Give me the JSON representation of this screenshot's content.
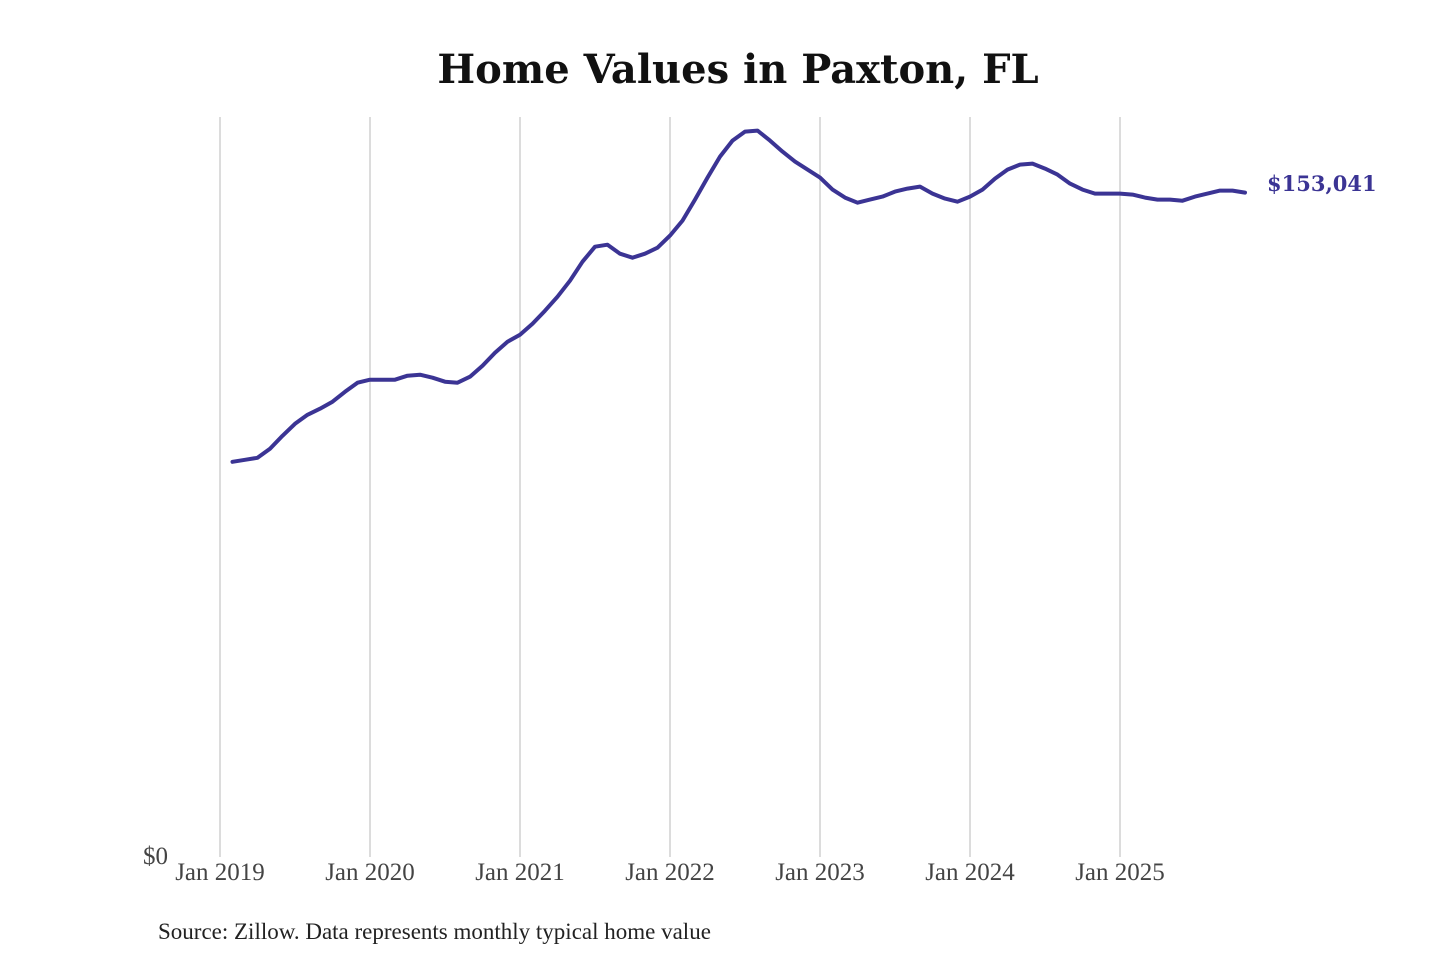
{
  "chart_data": {
    "type": "line",
    "title": "Home Values in Paxton, FL",
    "source": "Source: Zillow. Data represents monthly typical home value",
    "xlabel": "",
    "ylabel": "",
    "x_ticks": [
      "Jan 2019",
      "Jan 2020",
      "Jan 2021",
      "Jan 2022",
      "Jan 2023",
      "Jan 2024",
      "Jan 2025"
    ],
    "y_ticks": [
      "$0"
    ],
    "ylim": [
      0,
      170000
    ],
    "grid": "vertical",
    "line_color": "#3b3494",
    "end_label": "$153,041",
    "x": [
      "2019-02",
      "2019-03",
      "2019-04",
      "2019-05",
      "2019-06",
      "2019-07",
      "2019-08",
      "2019-09",
      "2019-10",
      "2019-11",
      "2019-12",
      "2020-01",
      "2020-02",
      "2020-03",
      "2020-04",
      "2020-05",
      "2020-06",
      "2020-07",
      "2020-08",
      "2020-09",
      "2020-10",
      "2020-11",
      "2020-12",
      "2021-01",
      "2021-02",
      "2021-03",
      "2021-04",
      "2021-05",
      "2021-06",
      "2021-07",
      "2021-08",
      "2021-09",
      "2021-10",
      "2021-11",
      "2021-12",
      "2022-01",
      "2022-02",
      "2022-03",
      "2022-04",
      "2022-05",
      "2022-06",
      "2022-07",
      "2022-08",
      "2022-09",
      "2022-10",
      "2022-11",
      "2022-12",
      "2023-01",
      "2023-02",
      "2023-03",
      "2023-04",
      "2023-05",
      "2023-06",
      "2023-07",
      "2023-08",
      "2023-09",
      "2023-10",
      "2023-11",
      "2023-12",
      "2024-01",
      "2024-02",
      "2024-03",
      "2024-04",
      "2024-05",
      "2024-06",
      "2024-07",
      "2024-08",
      "2024-09",
      "2024-10",
      "2024-11",
      "2024-12",
      "2025-01",
      "2025-02",
      "2025-03",
      "2025-04",
      "2025-05",
      "2025-06",
      "2025-07",
      "2025-08",
      "2025-09",
      "2025-10",
      "2025-11"
    ],
    "values": [
      91040,
      91500,
      91960,
      94040,
      97030,
      99800,
      101870,
      103260,
      104870,
      107170,
      109250,
      109940,
      109940,
      109940,
      110860,
      111090,
      110400,
      109480,
      109250,
      110630,
      113170,
      116160,
      118700,
      120310,
      122850,
      125840,
      129070,
      132760,
      137140,
      140590,
      141050,
      138980,
      138060,
      138980,
      140360,
      143130,
      146590,
      151430,
      156500,
      161340,
      165020,
      167100,
      167330,
      165020,
      162490,
      160180,
      158340,
      156500,
      153730,
      151890,
      150730,
      151430,
      152120,
      153270,
      153960,
      154420,
      152810,
      151660,
      150960,
      152120,
      153730,
      156270,
      158340,
      159490,
      159720,
      158570,
      157190,
      155110,
      153730,
      152810,
      152810,
      152810,
      152580,
      151890,
      151430,
      151430,
      151190,
      152120,
      152810,
      153500,
      153500,
      153041
    ]
  }
}
